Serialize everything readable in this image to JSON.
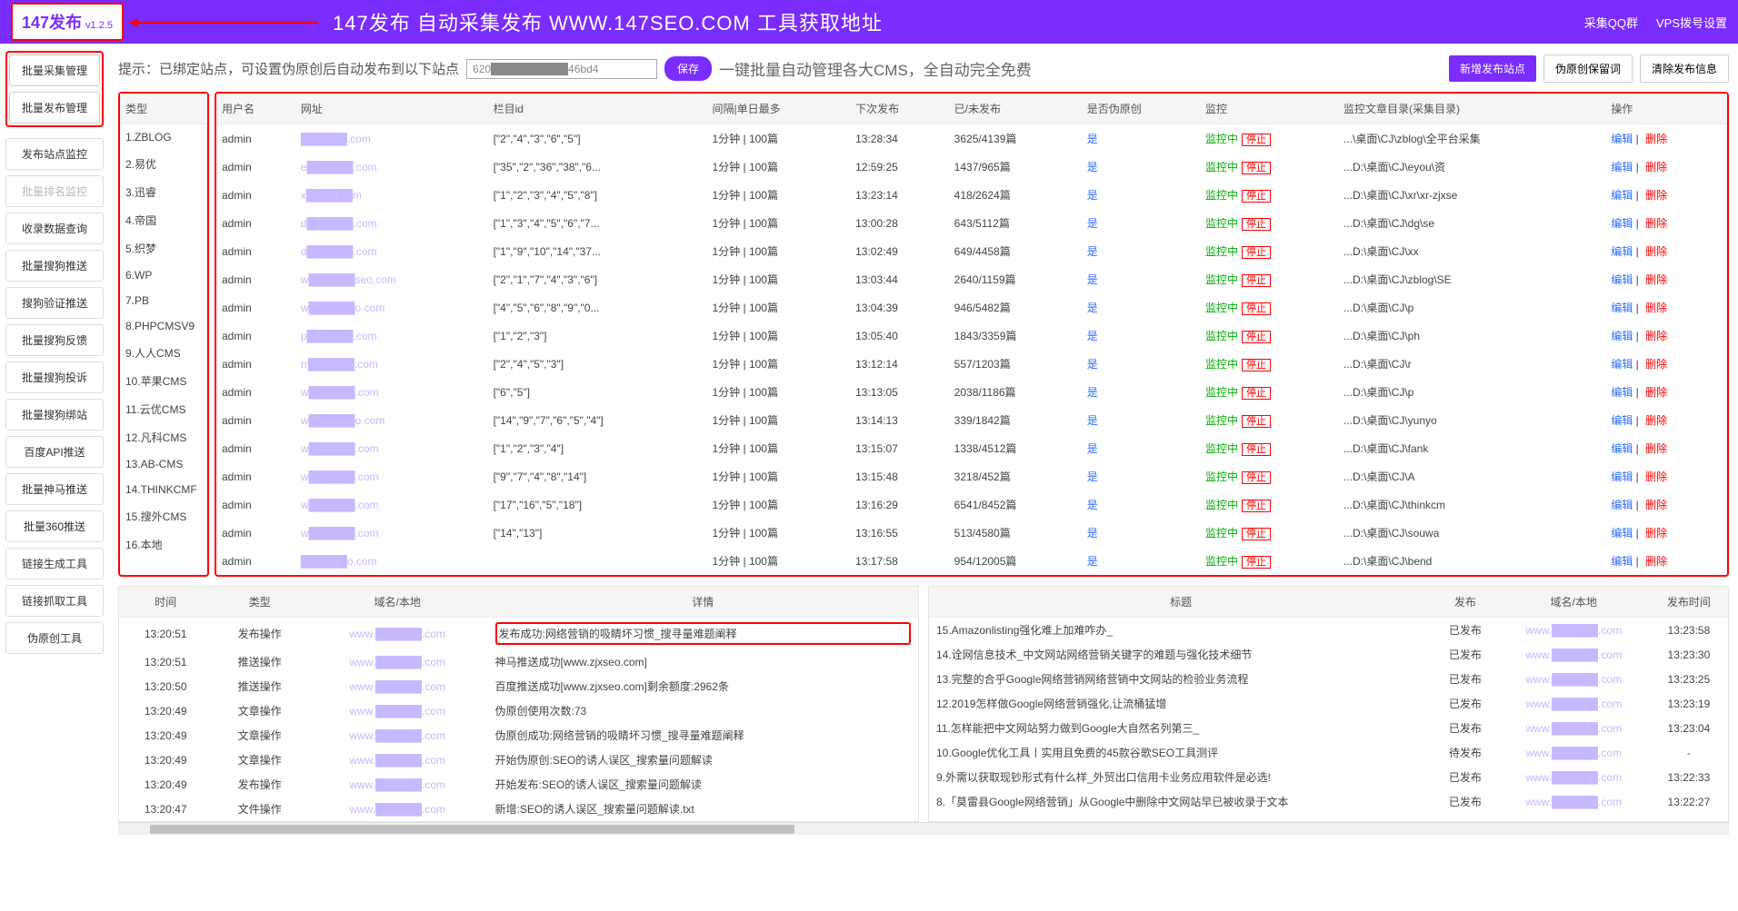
{
  "header": {
    "logo": "147发布",
    "version": "v1.2.5",
    "title": "147发布 自动采集发布 WWW.147SEO.COM 工具获取地址",
    "link_qq": "采集QQ群",
    "link_vps": "VPS拨号设置"
  },
  "sidebar": {
    "g1a": "批量采集管理",
    "g1b": "批量发布管理",
    "items": [
      "发布站点监控",
      "批量排名监控",
      "收录数据查询",
      "批量搜狗推送",
      "搜狗验证推送",
      "批量搜狗反馈",
      "批量搜狗投诉",
      "批量搜狗绑站",
      "百度API推送",
      "批量神马推送",
      "批量360推送",
      "链接生成工具",
      "链接抓取工具",
      "伪原创工具"
    ],
    "disabled_index": 1
  },
  "hint": {
    "text": "提示：已绑定站点，可设置伪原创后自动发布到以下站点",
    "input_ph": "伪原创token",
    "input_val": "620██████████46bd4",
    "save": "保存",
    "tail": "一键批量自动管理各大CMS，全自动完全免费",
    "b_new": "新增发布站点",
    "b_keep": "伪原创保留词",
    "b_clear": "清除发布信息"
  },
  "cols": {
    "type": "类型",
    "user": "用户名",
    "url": "网址",
    "col": "栏目id",
    "intv": "间隔|单日最多",
    "next": "下次发布",
    "pub": "已/未发布",
    "fake": "是否伪原创",
    "mon": "监控",
    "dir": "监控文章目录(采集目录)",
    "op": "操作"
  },
  "labels": {
    "monitoring": "监控中",
    "stop": "停止",
    "edit": "编辑",
    "del": "删除",
    "yes": "是",
    "sep": " | "
  },
  "rows": [
    {
      "type": "1.ZBLOG",
      "user": "admin",
      "url": "██████.com",
      "col": "[\"2\",\"4\",\"3\",\"6\",\"5\"]",
      "intv": "1分钟 | 100篇",
      "next": "13:28:34",
      "pub": "3625/4139篇",
      "dir": "...\\桌面\\CJ\\zblog\\全平台采集"
    },
    {
      "type": "2.易优",
      "user": "admin",
      "url": "e██████.com",
      "col": "[\"35\",\"2\",\"36\",\"38\",\"6...",
      "intv": "1分钟 | 100篇",
      "next": "12:59:25",
      "pub": "1437/965篇",
      "dir": "...D:\\桌面\\CJ\\eyou\\资"
    },
    {
      "type": "3.迅睿",
      "user": "admin",
      "url": "x██████m",
      "col": "[\"1\",\"2\",\"3\",\"4\",\"5\",\"8\"]",
      "intv": "1分钟 | 100篇",
      "next": "13:23:14",
      "pub": "418/2624篇",
      "dir": "...D:\\桌面\\CJ\\xr\\xr-zjxse"
    },
    {
      "type": "4.帝国",
      "user": "admin",
      "url": "d██████.com",
      "col": "[\"1\",\"3\",\"4\",\"5\",\"6\",\"7...",
      "intv": "1分钟 | 100篇",
      "next": "13:00:28",
      "pub": "643/5112篇",
      "dir": "...D:\\桌面\\CJ\\dg\\se"
    },
    {
      "type": "5.织梦",
      "user": "admin",
      "url": "d██████.com",
      "col": "[\"1\",\"9\",\"10\",\"14\",\"37...",
      "intv": "1分钟 | 100篇",
      "next": "13:02:49",
      "pub": "649/4458篇",
      "dir": "...D:\\桌面\\CJ\\xx"
    },
    {
      "type": "6.WP",
      "user": "admin",
      "url": "w██████seo.com",
      "col": "[\"2\",\"1\",\"7\",\"4\",\"3\",\"6\"]",
      "intv": "1分钟 | 100篇",
      "next": "13:03:44",
      "pub": "2640/1159篇",
      "dir": "...D:\\桌面\\CJ\\zblog\\SE"
    },
    {
      "type": "7.PB",
      "user": "admin",
      "url": "w██████o.com",
      "col": "[\"4\",\"5\",\"6\",\"8\",\"9\",\"0...",
      "intv": "1分钟 | 100篇",
      "next": "13:04:39",
      "pub": "946/5482篇",
      "dir": "...D:\\桌面\\CJ\\p"
    },
    {
      "type": "8.PHPCMSV9",
      "user": "admin",
      "url": "p██████.com",
      "col": "[\"1\",\"2\",\"3\"]",
      "intv": "1分钟 | 100篇",
      "next": "13:05:40",
      "pub": "1843/3359篇",
      "dir": "...D:\\桌面\\CJ\\ph"
    },
    {
      "type": "9.人人CMS",
      "user": "admin",
      "url": "rr██████.com",
      "col": "[\"2\",\"4\",\"5\",\"3\"]",
      "intv": "1分钟 | 100篇",
      "next": "13:12:14",
      "pub": "557/1203篇",
      "dir": "...D:\\桌面\\CJ\\r"
    },
    {
      "type": "10.苹果CMS",
      "user": "admin",
      "url": "w██████.com",
      "col": "[\"6\",\"5\"]",
      "intv": "1分钟 | 100篇",
      "next": "13:13:05",
      "pub": "2038/1186篇",
      "dir": "...D:\\桌面\\CJ\\p"
    },
    {
      "type": "11.云优CMS",
      "user": "admin",
      "url": "w██████o.com",
      "col": "[\"14\",\"9\",\"7\",\"6\",\"5\",\"4\"]",
      "intv": "1分钟 | 100篇",
      "next": "13:14:13",
      "pub": "339/1842篇",
      "dir": "...D:\\桌面\\CJ\\yunyo"
    },
    {
      "type": "12.凡科CMS",
      "user": "admin",
      "url": "w██████.com",
      "col": "[\"1\",\"2\",\"3\",\"4\"]",
      "intv": "1分钟 | 100篇",
      "next": "13:15:07",
      "pub": "1338/4512篇",
      "dir": "...D:\\桌面\\CJ\\fank"
    },
    {
      "type": "13.AB-CMS",
      "user": "admin",
      "url": "w██████.com",
      "col": "[\"9\",\"7\",\"4\",\"8\",\"14\"]",
      "intv": "1分钟 | 100篇",
      "next": "13:15:48",
      "pub": "3218/452篇",
      "dir": "...D:\\桌面\\CJ\\A"
    },
    {
      "type": "14.THINKCMF",
      "user": "admin",
      "url": "w██████.com",
      "col": "[\"17\",\"16\",\"5\",\"18\"]",
      "intv": "1分钟 | 100篇",
      "next": "13:16:29",
      "pub": "6541/8452篇",
      "dir": "...D:\\桌面\\CJ\\thinkcm"
    },
    {
      "type": "15.搜外CMS",
      "user": "admin",
      "url": "w██████.com",
      "col": "[\"14\",\"13\"]",
      "intv": "1分钟 | 100篇",
      "next": "13:16:55",
      "pub": "513/4580篇",
      "dir": "...D:\\桌面\\CJ\\souwa"
    },
    {
      "type": "16.本地",
      "user": "admin",
      "url": "██████o.com",
      "col": "",
      "intv": "1分钟 | 100篇",
      "next": "13:17:58",
      "pub": "954/12005篇",
      "dir": "...D:\\桌面\\CJ\\bend"
    }
  ],
  "log_cols": {
    "time": "时间",
    "type": "类型",
    "domain": "域名/本地",
    "detail": "详情"
  },
  "logs": [
    {
      "t": "13:20:51",
      "ty": "发布操作",
      "d": "www.██████.com",
      "de": "发布成功:网络营销的吸睛坏习惯_搜寻量难题阐释"
    },
    {
      "t": "13:20:51",
      "ty": "推送操作",
      "d": "www.██████.com",
      "de": "神马推送成功[www.zjxseo.com]"
    },
    {
      "t": "13:20:50",
      "ty": "推送操作",
      "d": "www.██████.com",
      "de": "百度推送成功[www.zjxseo.com]剩余额度:2962条"
    },
    {
      "t": "13:20:49",
      "ty": "文章操作",
      "d": "www.██████.com",
      "de": "伪原创使用次数:73"
    },
    {
      "t": "13:20:49",
      "ty": "文章操作",
      "d": "www.██████.com",
      "de": "伪原创成功:网络营销的吸睛坏习惯_搜寻量难题阐释"
    },
    {
      "t": "13:20:49",
      "ty": "文章操作",
      "d": "www.██████.com",
      "de": "开始伪原创:SEO的诱人误区_搜索量问题解读"
    },
    {
      "t": "13:20:49",
      "ty": "发布操作",
      "d": "www.██████.com",
      "de": "开始发布:SEO的诱人误区_搜索量问题解读"
    },
    {
      "t": "13:20:47",
      "ty": "文件操作",
      "d": "www.██████.com",
      "de": "新增:SEO的诱人误区_搜索量问题解读.txt"
    }
  ],
  "art_cols": {
    "title": "标题",
    "pub": "发布",
    "domain": "域名/本地",
    "time": "发布时间"
  },
  "pub_labels": {
    "done": "已发布",
    "wait": "待发布"
  },
  "arts": [
    {
      "ti": "15.Amazonlisting强化难上加难咋办_",
      "p": "done",
      "d": "www.██████.com",
      "tm": "13:23:58"
    },
    {
      "ti": "14.诠网信息技术_中文网站网络营销关键字的难题与强化技术细节",
      "p": "done",
      "d": "www.██████.com",
      "tm": "13:23:30"
    },
    {
      "ti": "13.完整的合乎Google网络营销网络营销中文网站的检验业务流程",
      "p": "done",
      "d": "www.██████.com",
      "tm": "13:23:25"
    },
    {
      "ti": "12.2019怎样做Google网络营销强化,让流桶猛增",
      "p": "done",
      "d": "www.██████.com",
      "tm": "13:23:19"
    },
    {
      "ti": "11.怎样能把中文网站努力做到Google大自然名列第三_",
      "p": "done",
      "d": "www.██████.com",
      "tm": "13:23:04"
    },
    {
      "ti": "10.Google优化工具丨实用且免费的45款谷歌SEO工具测评",
      "p": "wait",
      "d": "www.██████.com",
      "tm": "-"
    },
    {
      "ti": "9.外需以获取现钞形式有什么样_外贸出口信用卡业务应用软件是必选!",
      "p": "done",
      "d": "www.██████.com",
      "tm": "13:22:33"
    },
    {
      "ti": "8.「莫雷县Google网络营销」从Google中删除中文网站早已被收录于文本",
      "p": "done",
      "d": "www.██████.com",
      "tm": "13:22:27"
    }
  ]
}
